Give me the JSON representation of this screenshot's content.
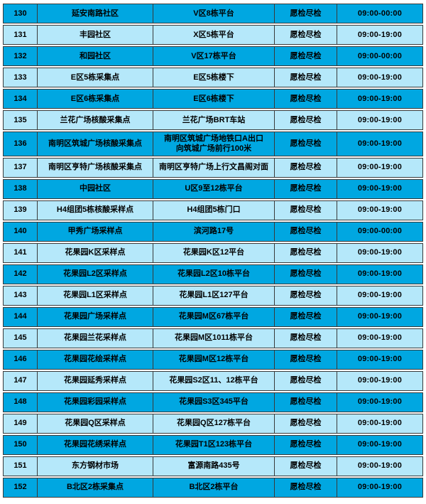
{
  "colors": {
    "row_dark": "#00a7e1",
    "row_light": "#b5e8fa",
    "border": "#3a3a3a",
    "text": "#000000",
    "page_bg": "#ffffff"
  },
  "table": {
    "description": "nucleic-acid-testing-sites-list-rows-130-152",
    "rows": [
      {
        "no": "130",
        "name": "延安南路社区",
        "location": "V区8栋平台",
        "type": "愿检尽检",
        "hours": "09:00-00:00"
      },
      {
        "no": "131",
        "name": "丰园社区",
        "location": "X区5栋平台",
        "type": "愿检尽检",
        "hours": "09:00-19:00"
      },
      {
        "no": "132",
        "name": "和园社区",
        "location": "V区17栋平台",
        "type": "愿检尽检",
        "hours": "09:00-00:00"
      },
      {
        "no": "133",
        "name": "E区5栋采集点",
        "location": "E区5栋楼下",
        "type": "愿检尽检",
        "hours": "09:00-19:00"
      },
      {
        "no": "134",
        "name": "E区6栋采集点",
        "location": "E区6栋楼下",
        "type": "愿检尽检",
        "hours": "09:00-19:00"
      },
      {
        "no": "135",
        "name": "兰花广场核酸采集点",
        "location": "兰花广场BRT车站",
        "type": "愿检尽检",
        "hours": "09:00-19:00"
      },
      {
        "no": "136",
        "name": "南明区筑城广场核酸采集点",
        "location": "南明区筑城广场地铁口A出口\n向筑城广场前行100米",
        "type": "愿检尽检",
        "hours": "09:00-19:00"
      },
      {
        "no": "137",
        "name": "南明区亨特广场核酸采集点",
        "location": "南明区亨特广场上行文昌阁对面",
        "type": "愿检尽检",
        "hours": "09:00-19:00"
      },
      {
        "no": "138",
        "name": "中园社区",
        "location": "U区9至12栋平台",
        "type": "愿检尽检",
        "hours": "09:00-19:00"
      },
      {
        "no": "139",
        "name": "H4组团5栋核酸采样点",
        "location": "H4组团5栋门口",
        "type": "愿检尽检",
        "hours": "09:00-19:00"
      },
      {
        "no": "140",
        "name": "甲秀广场采样点",
        "location": "滨河路17号",
        "type": "愿检尽检",
        "hours": "09:00-00:00"
      },
      {
        "no": "141",
        "name": "花果园K区采样点",
        "location": "花果园K区12平台",
        "type": "愿检尽检",
        "hours": "09:00-19:00"
      },
      {
        "no": "142",
        "name": "花果园L2区采样点",
        "location": "花果园L2区10栋平台",
        "type": "愿检尽检",
        "hours": "09:00-19:00"
      },
      {
        "no": "143",
        "name": "花果园L1区采样点",
        "location": "花果园L1区127平台",
        "type": "愿检尽检",
        "hours": "09:00-19:00"
      },
      {
        "no": "144",
        "name": "花果园广场采样点",
        "location": "花果园M区67栋平台",
        "type": "愿检尽检",
        "hours": "09:00-19:00"
      },
      {
        "no": "145",
        "name": "花果园兰花采样点",
        "location": "花果园M区1011栋平台",
        "type": "愿检尽检",
        "hours": "09:00-19:00"
      },
      {
        "no": "146",
        "name": "花果园花绘采样点",
        "location": "花果园M区12栋平台",
        "type": "愿检尽检",
        "hours": "09:00-19:00"
      },
      {
        "no": "147",
        "name": "花果园延秀采样点",
        "location": "花果园S2区11、12栋平台",
        "type": "愿检尽检",
        "hours": "09:00-19:00"
      },
      {
        "no": "148",
        "name": "花果园彩园采样点",
        "location": "花果园S3区345平台",
        "type": "愿检尽检",
        "hours": "09:00-19:00"
      },
      {
        "no": "149",
        "name": "花果园Q区采样点",
        "location": "花果园Q区127栋平台",
        "type": "愿检尽检",
        "hours": "09:00-19:00"
      },
      {
        "no": "150",
        "name": "花果园花绣采样点",
        "location": "花果园T1区123栋平台",
        "type": "愿检尽检",
        "hours": "09:00-19:00"
      },
      {
        "no": "151",
        "name": "东方钢材市场",
        "location": "富源南路435号",
        "type": "愿检尽检",
        "hours": "09:00-19:00"
      },
      {
        "no": "152",
        "name": "B北区2栋采集点",
        "location": "B北区2栋平台",
        "type": "愿检尽检",
        "hours": "09:00-19:00"
      }
    ]
  }
}
